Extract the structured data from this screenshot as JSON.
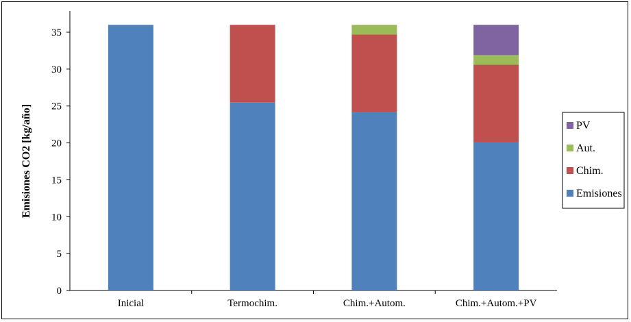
{
  "chart_data": {
    "type": "bar",
    "stacked": true,
    "title": "",
    "xlabel": "",
    "ylabel": "Emisiones CO2 [kg/año]",
    "ylim": [
      0,
      35
    ],
    "yticks": [
      "0",
      "5",
      "10",
      "15",
      "20",
      "25",
      "30",
      "35"
    ],
    "grid": false,
    "legend_position": "right",
    "categories": [
      "Inicial",
      "Termochim.",
      "Chim.+Autom.",
      "Chim.+Autom.+PV"
    ],
    "series": [
      {
        "name": "Emisiones",
        "color": "#4F81BD",
        "values": [
          36,
          25.5,
          24.2,
          20.1
        ]
      },
      {
        "name": "Chim.",
        "color": "#C0504D",
        "values": [
          0,
          10.5,
          10.5,
          10.5
        ]
      },
      {
        "name": "Aut.",
        "color": "#9BBB59",
        "values": [
          0,
          0,
          1.3,
          1.3
        ]
      },
      {
        "name": "PV",
        "color": "#8064A2",
        "values": [
          0,
          0,
          0,
          4.1
        ]
      }
    ]
  }
}
